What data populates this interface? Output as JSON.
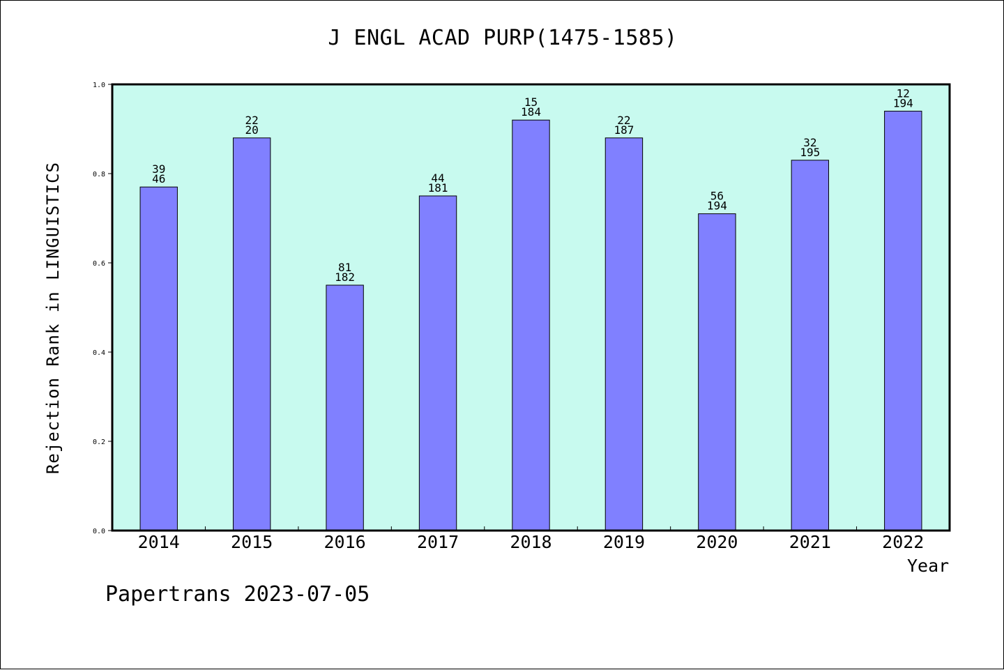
{
  "chart_data": {
    "type": "bar",
    "title": "J ENGL ACAD PURP(1475-1585)",
    "xlabel": "Year",
    "ylabel": "Rejection Rank in LINGUISTICS",
    "ylim": [
      0.0,
      1.0
    ],
    "yticks": [
      "0.0",
      "0.2",
      "0.4",
      "0.6",
      "0.8",
      "1.0"
    ],
    "categories": [
      "2014",
      "2015",
      "2016",
      "2017",
      "2018",
      "2019",
      "2020",
      "2021",
      "2022"
    ],
    "values": [
      0.77,
      0.88,
      0.55,
      0.75,
      0.92,
      0.88,
      0.71,
      0.83,
      0.94
    ],
    "label_top": [
      "39",
      "22",
      "81",
      "44",
      "15",
      "22",
      "56",
      "32",
      "12"
    ],
    "label_bottom": [
      "46",
      "20",
      "182",
      "181",
      "184",
      "187",
      "194",
      "195",
      "194"
    ],
    "grid": false,
    "colors": {
      "bar": "#8080ff",
      "plot_background": "#c8faef",
      "axis": "#000000"
    }
  },
  "footer": "Papertrans 2023-07-05"
}
